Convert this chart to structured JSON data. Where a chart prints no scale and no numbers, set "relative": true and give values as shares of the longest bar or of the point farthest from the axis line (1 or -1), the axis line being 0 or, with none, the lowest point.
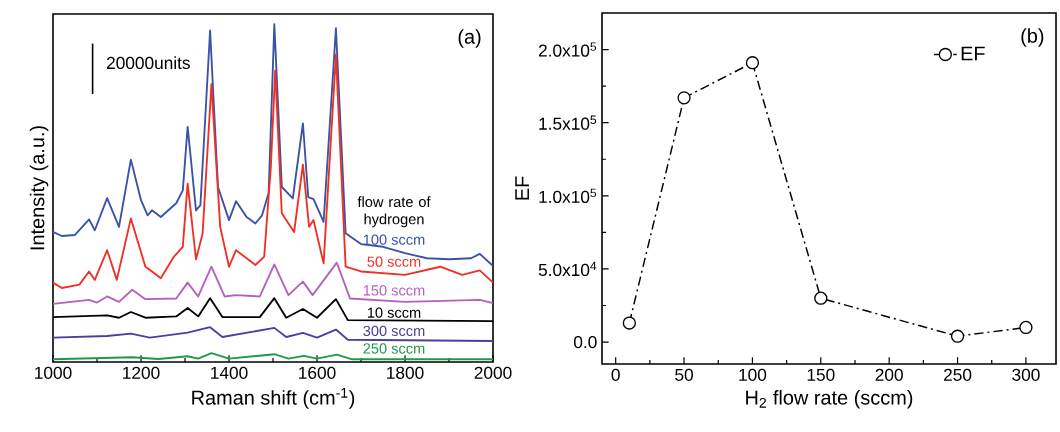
{
  "chart_data": [
    {
      "type": "line",
      "xlabel": "Raman shift (cm$^{-1}$)",
      "ylabel": "Intensity (a.u.)",
      "relative": true,
      "xlim": [
        1000,
        2000
      ],
      "xticks": [
        1000,
        1200,
        1400,
        1600,
        1800,
        2000
      ],
      "legend_title": "flow rate of hydrogen",
      "annotations": [
        "(a)",
        "20000units"
      ],
      "series": [
        {
          "name": "100 sccm",
          "color": "#3a53a4",
          "x": [
            1000,
            1020,
            1050,
            1082,
            1095,
            1123,
            1150,
            1177,
            1200,
            1215,
            1225,
            1245,
            1280,
            1295,
            1306,
            1325,
            1335,
            1357,
            1375,
            1400,
            1416,
            1440,
            1460,
            1475,
            1490,
            1503,
            1520,
            1545,
            1568,
            1580,
            1592,
            1615,
            1643,
            1665,
            1700,
            1750,
            1800,
            1850,
            1900,
            1950,
            1970,
            2000
          ],
          "values": [
            0.385,
            0.373,
            0.376,
            0.422,
            0.39,
            0.485,
            0.4,
            0.599,
            0.479,
            0.434,
            0.449,
            0.429,
            0.47,
            0.508,
            0.696,
            0.449,
            0.464,
            0.981,
            0.518,
            0.42,
            0.476,
            0.429,
            0.41,
            0.434,
            0.5,
            1.0,
            0.518,
            0.484,
            0.706,
            0.488,
            0.482,
            0.415,
            0.988,
            0.381,
            0.349,
            0.341,
            0.322,
            0.307,
            0.304,
            0.307,
            0.32,
            0.284
          ]
        },
        {
          "name": "50 sccm",
          "color": "#ee3124",
          "x": [
            1000,
            1020,
            1060,
            1082,
            1095,
            1123,
            1145,
            1177,
            1210,
            1225,
            1245,
            1275,
            1295,
            1306,
            1325,
            1340,
            1360,
            1380,
            1400,
            1416,
            1440,
            1460,
            1480,
            1495,
            1505,
            1520,
            1548,
            1568,
            1582,
            1592,
            1615,
            1643,
            1665,
            1700,
            1800,
            1880,
            1930,
            1970,
            2000
          ],
          "values": [
            0.235,
            0.219,
            0.229,
            0.268,
            0.243,
            0.331,
            0.243,
            0.425,
            0.282,
            0.268,
            0.248,
            0.312,
            0.341,
            0.528,
            0.304,
            0.38,
            0.822,
            0.4,
            0.282,
            0.331,
            0.307,
            0.287,
            0.312,
            0.576,
            0.863,
            0.44,
            0.385,
            0.584,
            0.4,
            0.42,
            0.292,
            0.91,
            0.282,
            0.268,
            0.258,
            0.282,
            0.258,
            0.271,
            0.235
          ]
        },
        {
          "name": "150 sccm",
          "color": "#b65fc0",
          "x": [
            1000,
            1082,
            1100,
            1123,
            1150,
            1180,
            1210,
            1280,
            1306,
            1330,
            1360,
            1390,
            1416,
            1470,
            1503,
            1535,
            1568,
            1590,
            1645,
            1675,
            1800,
            1970,
            2000
          ],
          "values": [
            0.172,
            0.184,
            0.176,
            0.194,
            0.178,
            0.214,
            0.186,
            0.188,
            0.235,
            0.194,
            0.282,
            0.194,
            0.198,
            0.194,
            0.289,
            0.198,
            0.238,
            0.198,
            0.294,
            0.188,
            0.178,
            0.184,
            0.174
          ]
        },
        {
          "name": "10 sccm",
          "color": "#000000",
          "x": [
            1000,
            1123,
            1150,
            1177,
            1210,
            1280,
            1306,
            1330,
            1357,
            1385,
            1470,
            1503,
            1530,
            1568,
            1600,
            1643,
            1670,
            2000
          ],
          "values": [
            0.133,
            0.138,
            0.131,
            0.148,
            0.131,
            0.135,
            0.16,
            0.135,
            0.189,
            0.133,
            0.133,
            0.189,
            0.131,
            0.157,
            0.131,
            0.186,
            0.124,
            0.121
          ]
        },
        {
          "name": "300 sccm",
          "color": "#4b3fa0",
          "x": [
            1000,
            1123,
            1177,
            1220,
            1306,
            1357,
            1385,
            1503,
            1530,
            1568,
            1600,
            1643,
            1670,
            2000
          ],
          "values": [
            0.072,
            0.077,
            0.084,
            0.072,
            0.087,
            0.103,
            0.074,
            0.101,
            0.074,
            0.086,
            0.072,
            0.096,
            0.066,
            0.062
          ]
        },
        {
          "name": "250 sccm",
          "color": "#1f9a48",
          "x": [
            1000,
            1180,
            1240,
            1306,
            1330,
            1360,
            1400,
            1503,
            1535,
            1570,
            1600,
            1645,
            1680,
            2000
          ],
          "values": [
            0.008,
            0.014,
            0.009,
            0.017,
            0.01,
            0.026,
            0.01,
            0.023,
            0.01,
            0.018,
            0.01,
            0.022,
            0.008,
            0.008
          ]
        }
      ]
    },
    {
      "type": "line",
      "xlabel": "H$_{2}$ flow rate (sccm)",
      "ylabel": "EF",
      "annotations": [
        "(b)"
      ],
      "x": [
        10,
        50,
        100,
        150,
        250,
        300
      ],
      "xlim": [
        -10,
        322
      ],
      "ylim": [
        -15000,
        225000
      ],
      "xticks": [
        0,
        50,
        100,
        150,
        200,
        250,
        300
      ],
      "yticks": [
        {
          "value": 0,
          "label": "0.0"
        },
        {
          "value": 50000,
          "label": "5.0x10$^{4}$"
        },
        {
          "value": 100000,
          "label": "1.0x10$^{5}$"
        },
        {
          "value": 150000,
          "label": "1.5x10$^{5}$"
        },
        {
          "value": 200000,
          "label": "2.0x10$^{5}$"
        }
      ],
      "marker": "circle",
      "line_style": "dashdot",
      "legend": "top right",
      "series": [
        {
          "name": "EF",
          "color": "#000000",
          "values": [
            13000,
            167000,
            191000,
            30000,
            4000,
            10000
          ]
        }
      ]
    }
  ]
}
